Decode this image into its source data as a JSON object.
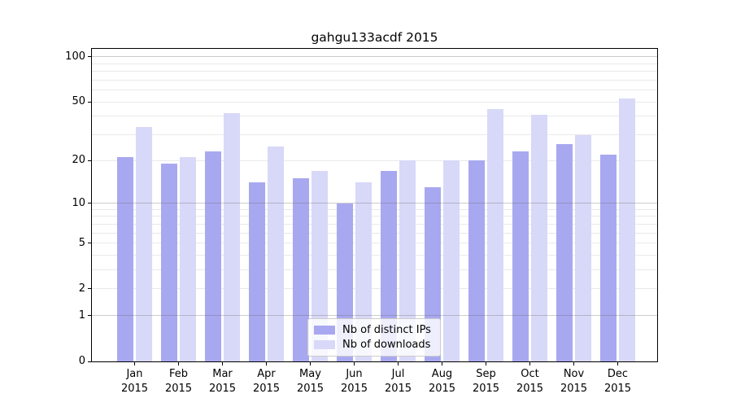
{
  "chart_data": {
    "type": "bar",
    "title": "gahgu133acdf 2015",
    "categories": [
      "Jan",
      "Feb",
      "Mar",
      "Apr",
      "May",
      "Jun",
      "Jul",
      "Aug",
      "Sep",
      "Oct",
      "Nov",
      "Dec"
    ],
    "category_year": "2015",
    "series": [
      {
        "name": "Nb of distinct IPs",
        "color": "#a8a8f0",
        "values": [
          21,
          19,
          23,
          14,
          15,
          10,
          17,
          13,
          20,
          23,
          26,
          22
        ]
      },
      {
        "name": "Nb of downloads",
        "color": "#d8d8f8",
        "values": [
          34,
          21,
          42,
          25,
          17,
          14,
          20,
          20,
          45,
          41,
          30,
          53
        ]
      }
    ],
    "xlabel": "",
    "ylabel": "",
    "yscale": "log1p",
    "ylim": [
      0,
      113
    ],
    "yticks": [
      0,
      1,
      2,
      5,
      10,
      20,
      50,
      100
    ],
    "major_gridlines": [
      1,
      10,
      100
    ],
    "minor_gridlines": [
      2,
      3,
      4,
      5,
      6,
      7,
      8,
      9,
      20,
      30,
      40,
      50,
      60,
      70,
      80,
      90
    ],
    "grid": true,
    "legend_position": "lower center"
  }
}
